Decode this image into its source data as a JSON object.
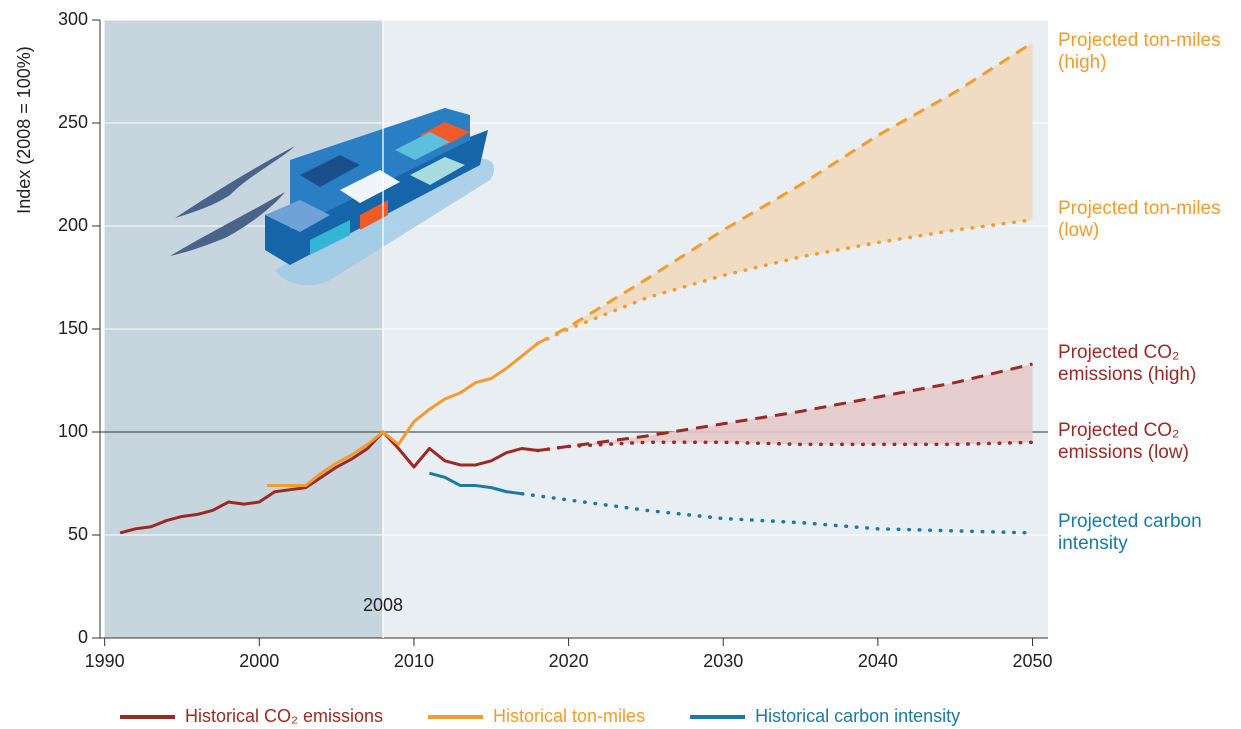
{
  "chart_data": {
    "type": "line",
    "y_label": "Index (2008 = 100%)",
    "xlim": [
      1989.7,
      2051
    ],
    "xticks": [
      1990,
      2000,
      2010,
      2020,
      2030,
      2040,
      2050
    ],
    "ylim": [
      0,
      300
    ],
    "yticks": [
      0,
      50,
      100,
      150,
      200,
      250,
      300
    ],
    "hline": 100,
    "vline": {
      "x": 2008,
      "label": "2008"
    },
    "shade_color": "#c6d5de",
    "background": "#e9eef3",
    "series": [
      {
        "name": "Historical CO₂ emissions",
        "color": "#9b2a24",
        "style": "solid",
        "legend": true,
        "x": [
          1991,
          1992,
          1993,
          1994,
          1995,
          1996,
          1997,
          1998,
          1999,
          2000,
          2001,
          2002,
          2003,
          2004,
          2005,
          2006,
          2007,
          2008,
          2009,
          2010,
          2011,
          2012,
          2013,
          2014,
          2015,
          2016,
          2017,
          2018
        ],
        "values": [
          51,
          53,
          54,
          57,
          59,
          60,
          62,
          66,
          65,
          66,
          71,
          72,
          73,
          78,
          83,
          87,
          92,
          100,
          92,
          83,
          92,
          86,
          84,
          84,
          86,
          90,
          92,
          91
        ]
      },
      {
        "name": "Historical ton-miles",
        "color": "#f29b2e",
        "style": "solid",
        "legend": true,
        "x": [
          2000.5,
          2001,
          2002,
          2003,
          2004,
          2005,
          2006,
          2007,
          2008,
          2009,
          2010,
          2011,
          2012,
          2013,
          2014,
          2015,
          2016,
          2017,
          2018
        ],
        "values": [
          74,
          74,
          74,
          74,
          80,
          85,
          89,
          94,
          100,
          94,
          105,
          111,
          116,
          119,
          124,
          126,
          131,
          137,
          143
        ]
      },
      {
        "name": "Historical carbon intensity",
        "color": "#1b7aa3",
        "style": "solid",
        "legend": true,
        "x": [
          2011,
          2012,
          2013,
          2014,
          2015,
          2016,
          2017
        ],
        "values": [
          80,
          78,
          74,
          74,
          73,
          71,
          70
        ]
      },
      {
        "name": "Projected ton-miles (high)",
        "color": "#f29b2e",
        "style": "dashed",
        "fill": "#f0d9bc",
        "legend": false,
        "x": [
          2018,
          2020,
          2025,
          2030,
          2035,
          2040,
          2045,
          2050
        ],
        "values": [
          143,
          151,
          174,
          198,
          220,
          244,
          265,
          289
        ]
      },
      {
        "name": "Projected ton-miles (low)",
        "color": "#f29b2e",
        "style": "dotted",
        "legend": false,
        "x": [
          2018,
          2020,
          2025,
          2030,
          2035,
          2040,
          2045,
          2050
        ],
        "values": [
          143,
          150,
          165,
          176,
          185,
          192,
          198,
          203
        ]
      },
      {
        "name": "Projected CO₂ emissions (high)",
        "color": "#9b2a24",
        "style": "dashed",
        "fill": "#e3c9c8",
        "legend": false,
        "x": [
          2018,
          2020,
          2025,
          2030,
          2035,
          2040,
          2045,
          2050
        ],
        "values": [
          91,
          93,
          98,
          104,
          110,
          117,
          124,
          133
        ]
      },
      {
        "name": "Projected CO₂ emissions (low)",
        "color": "#9b2a24",
        "style": "dotted",
        "legend": false,
        "x": [
          2018,
          2020,
          2025,
          2030,
          2035,
          2040,
          2045,
          2050
        ],
        "values": [
          91,
          93,
          95,
          95,
          94,
          94,
          94,
          95
        ]
      },
      {
        "name": "Projected carbon intensity",
        "color": "#1b7aa3",
        "style": "dotted",
        "legend": false,
        "x": [
          2017,
          2020,
          2025,
          2030,
          2035,
          2040,
          2045,
          2050
        ],
        "values": [
          70,
          67,
          62,
          58,
          56,
          53,
          52,
          51
        ]
      }
    ]
  }
}
